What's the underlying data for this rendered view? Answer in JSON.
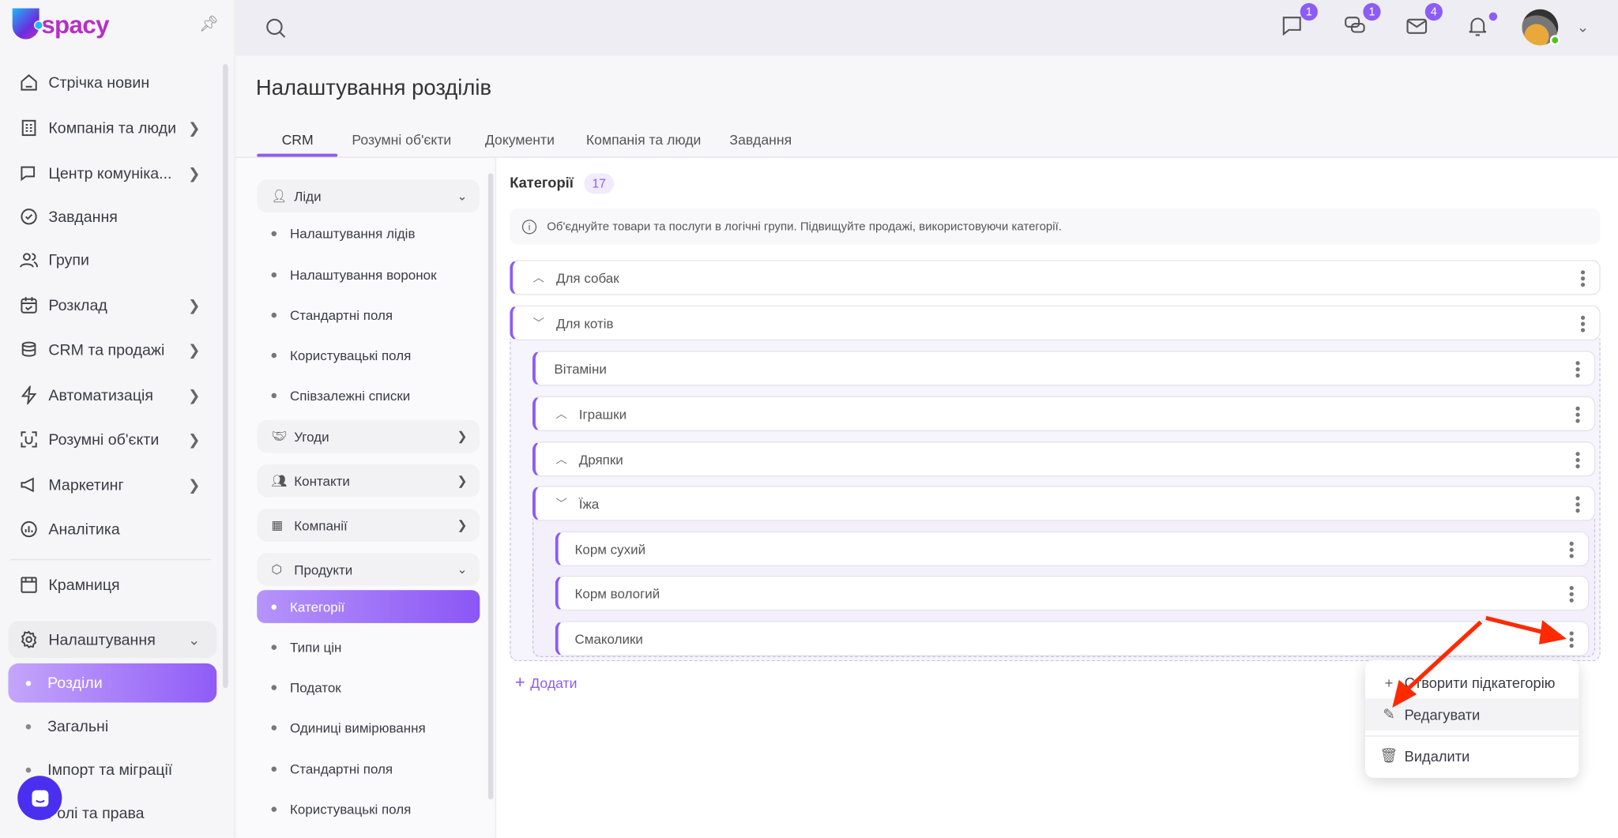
{
  "brand": {
    "logo_text": "spacy"
  },
  "sidebar": {
    "items": [
      {
        "label": "Стрічка новин",
        "icon": "home-icon"
      },
      {
        "label": "Компанія та люди",
        "icon": "building-icon",
        "has_children": true
      },
      {
        "label": "Центр комуніка...",
        "icon": "chat-edit-icon",
        "has_children": true
      },
      {
        "label": "Завдання",
        "icon": "check-circle-icon"
      },
      {
        "label": "Групи",
        "icon": "users-icon"
      },
      {
        "label": "Розклад",
        "icon": "calendar-icon",
        "has_children": true
      },
      {
        "label": "CRM та продажі",
        "icon": "coins-icon",
        "has_children": true
      },
      {
        "label": "Автоматизація",
        "icon": "lightning-icon",
        "has_children": true
      },
      {
        "label": "Розумні об'єкти",
        "icon": "scan-icon",
        "has_children": true
      },
      {
        "label": "Маркетинг",
        "icon": "megaphone-icon",
        "has_children": true
      },
      {
        "label": "Аналітика",
        "icon": "chart-icon"
      },
      {
        "label": "Крамниця",
        "icon": "store-icon"
      }
    ],
    "settings": {
      "label": "Налаштування",
      "icon": "gear-icon",
      "expanded": true,
      "children": [
        {
          "label": "Розділи",
          "active": true
        },
        {
          "label": "Загальні"
        },
        {
          "label": "Імпорт та міграції"
        },
        {
          "label": "Ролі та права"
        }
      ]
    }
  },
  "topbar": {
    "search_icon": "search-icon",
    "icons": [
      {
        "name": "chat-icon",
        "badge": "1"
      },
      {
        "name": "messages-icon",
        "badge": "1"
      },
      {
        "name": "mail-icon",
        "badge": "4"
      },
      {
        "name": "bell-icon",
        "badge": ""
      }
    ],
    "status_color": "#52c41a"
  },
  "page": {
    "title": "Налаштування розділів",
    "tabs": [
      {
        "label": "CRM",
        "active": true
      },
      {
        "label": "Розумні об'єкти"
      },
      {
        "label": "Документи"
      },
      {
        "label": "Компанія та люди"
      },
      {
        "label": "Завдання"
      }
    ]
  },
  "leftnav": {
    "sections": [
      {
        "label": "Ліди",
        "icon": "user-plus-icon",
        "expanded": true,
        "items": [
          "Налаштування лідів",
          "Налаштування воронок",
          "Стандартні поля",
          "Користувацькі поля",
          "Співзалежні списки"
        ]
      },
      {
        "label": "Угоди",
        "icon": "handshake-icon",
        "expanded": false
      },
      {
        "label": "Контакти",
        "icon": "contacts-icon",
        "expanded": false
      },
      {
        "label": "Компанії",
        "icon": "building-icon",
        "expanded": false
      },
      {
        "label": "Продукти",
        "icon": "box-icon",
        "expanded": true,
        "items": [
          "Категорії",
          "Типи цін",
          "Податок",
          "Одиниці вимірювання",
          "Стандартні поля",
          "Користувацькі поля"
        ],
        "active": "Категорії"
      }
    ]
  },
  "categories": {
    "title": "Категорії",
    "count": "17",
    "info": "Об'єднуйте товари та послуги в логічні групи. Підвищуйте продажі, використовуючи категорії.",
    "tree": [
      {
        "label": "Для собак",
        "state": "collapsed"
      },
      {
        "label": "Для котів",
        "state": "expanded",
        "children": [
          {
            "label": "Вітаміни"
          },
          {
            "label": "Іграшки",
            "state": "collapsed"
          },
          {
            "label": "Дряпки",
            "state": "collapsed"
          },
          {
            "label": "Їжа",
            "state": "expanded",
            "children": [
              {
                "label": "Корм сухий"
              },
              {
                "label": "Корм вологий"
              },
              {
                "label": "Смаколики"
              }
            ]
          }
        ]
      }
    ],
    "add_label": "Додати"
  },
  "context_menu": {
    "items": [
      {
        "label": "Створити підкатегорію",
        "icon": "plus-icon"
      },
      {
        "label": "Редагувати",
        "icon": "pencil-icon",
        "hovered": true
      },
      {
        "label": "Видалити",
        "icon": "trash-icon"
      }
    ]
  },
  "accent": "#8c5cf6",
  "annotation_color": "#ff2a00"
}
